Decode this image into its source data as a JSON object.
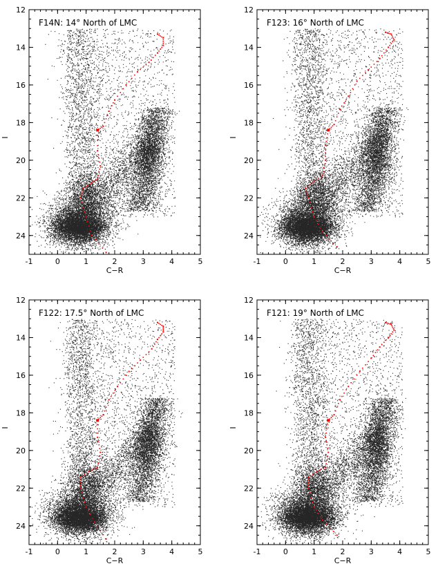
{
  "chart_data": [
    {
      "type": "scatter",
      "title": "F14N: 14° North of LMC",
      "xlabel": "C−R",
      "ylabel": "I",
      "xlim": [
        -1,
        5
      ],
      "ylim": [
        25,
        12
      ],
      "xticks": [
        "-1",
        "0",
        "1",
        "2",
        "3",
        "4",
        "5"
      ],
      "yticks": [
        "12",
        "14",
        "16",
        "18",
        "20",
        "22",
        "24"
      ],
      "y_inverted": true,
      "grid": false,
      "series": [
        {
          "values": "dense black stellar points",
          "color": "#000000"
        },
        {
          "values": [
            [
              1.7,
              24.9
            ],
            [
              1.2,
              24.0
            ],
            [
              1.0,
              23.0
            ],
            [
              0.8,
              22.0
            ],
            [
              0.9,
              21.5
            ],
            [
              1.2,
              21.2
            ],
            [
              1.4,
              21.0
            ],
            [
              1.5,
              20.3
            ],
            [
              1.4,
              19.5
            ],
            [
              1.4,
              18.4
            ],
            [
              1.6,
              18.2
            ],
            [
              1.8,
              17.4
            ],
            [
              2.0,
              16.8
            ],
            [
              2.4,
              16.0
            ],
            [
              2.8,
              15.3
            ],
            [
              3.2,
              14.8
            ],
            [
              3.5,
              14.3
            ],
            [
              3.7,
              13.9
            ],
            [
              3.7,
              13.5
            ],
            [
              3.5,
              13.3
            ]
          ],
          "color": "#ff0000"
        }
      ]
    },
    {
      "type": "scatter",
      "title": "F123: 16° North of LMC",
      "xlabel": "C−R",
      "ylabel": "I",
      "xlim": [
        -1,
        5
      ],
      "ylim": [
        25,
        12
      ],
      "xticks": [
        "-1",
        "0",
        "1",
        "2",
        "3",
        "4",
        "5"
      ],
      "yticks": [
        "12",
        "14",
        "16",
        "18",
        "20",
        "22",
        "24"
      ],
      "y_inverted": true,
      "grid": false,
      "series": [
        {
          "values": "dense black stellar points",
          "color": "#000000"
        },
        {
          "values": [
            [
              1.8,
              24.6
            ],
            [
              1.3,
              23.8
            ],
            [
              1.0,
              23.0
            ],
            [
              0.8,
              22.0
            ],
            [
              0.7,
              21.5
            ],
            [
              1.0,
              21.1
            ],
            [
              1.3,
              20.8
            ],
            [
              1.4,
              20.0
            ],
            [
              1.4,
              19.2
            ],
            [
              1.5,
              18.4
            ],
            [
              1.7,
              18.1
            ],
            [
              1.9,
              17.3
            ],
            [
              2.2,
              16.6
            ],
            [
              2.5,
              15.8
            ],
            [
              2.9,
              15.2
            ],
            [
              3.3,
              14.6
            ],
            [
              3.6,
              14.0
            ],
            [
              3.8,
              13.6
            ],
            [
              3.7,
              13.3
            ],
            [
              3.5,
              13.2
            ]
          ],
          "color": "#ff0000"
        }
      ]
    },
    {
      "type": "scatter",
      "title": "F122: 17.5° North of LMC",
      "xlabel": "C−R",
      "ylabel": "I",
      "xlim": [
        -1,
        5
      ],
      "ylim": [
        25,
        12
      ],
      "xticks": [
        "-1",
        "0",
        "1",
        "2",
        "3",
        "4",
        "5"
      ],
      "yticks": [
        "12",
        "14",
        "16",
        "18",
        "20",
        "22",
        "24"
      ],
      "y_inverted": true,
      "grid": false,
      "series": [
        {
          "values": "dense black stellar points",
          "color": "#000000"
        },
        {
          "values": [
            [
              1.7,
              24.7
            ],
            [
              1.3,
              23.8
            ],
            [
              1.0,
              23.0
            ],
            [
              0.8,
              22.0
            ],
            [
              0.8,
              21.4
            ],
            [
              1.1,
              21.1
            ],
            [
              1.4,
              20.9
            ],
            [
              1.5,
              20.1
            ],
            [
              1.4,
              19.3
            ],
            [
              1.4,
              18.4
            ],
            [
              1.6,
              18.1
            ],
            [
              1.8,
              17.3
            ],
            [
              2.1,
              16.6
            ],
            [
              2.5,
              15.8
            ],
            [
              2.9,
              15.2
            ],
            [
              3.3,
              14.6
            ],
            [
              3.5,
              14.1
            ],
            [
              3.7,
              13.7
            ],
            [
              3.7,
              13.4
            ],
            [
              3.5,
              13.2
            ]
          ],
          "color": "#ff0000"
        }
      ]
    },
    {
      "type": "scatter",
      "title": "F121: 19° North of LMC",
      "xlabel": "C−R",
      "ylabel": "I",
      "xlim": [
        -1,
        5
      ],
      "ylim": [
        25,
        12
      ],
      "xticks": [
        "-1",
        "0",
        "1",
        "2",
        "3",
        "4",
        "5"
      ],
      "yticks": [
        "12",
        "14",
        "16",
        "18",
        "20",
        "22",
        "24"
      ],
      "y_inverted": true,
      "grid": false,
      "series": [
        {
          "values": "dense black stellar points",
          "color": "#000000"
        },
        {
          "values": [
            [
              1.8,
              24.5
            ],
            [
              1.3,
              23.7
            ],
            [
              1.0,
              23.0
            ],
            [
              0.8,
              22.0
            ],
            [
              0.8,
              21.4
            ],
            [
              1.1,
              21.1
            ],
            [
              1.4,
              20.9
            ],
            [
              1.5,
              20.1
            ],
            [
              1.4,
              19.3
            ],
            [
              1.5,
              18.4
            ],
            [
              1.7,
              18.1
            ],
            [
              1.9,
              17.3
            ],
            [
              2.2,
              16.6
            ],
            [
              2.6,
              15.8
            ],
            [
              3.0,
              15.1
            ],
            [
              3.3,
              14.5
            ],
            [
              3.6,
              14.0
            ],
            [
              3.8,
              13.6
            ],
            [
              3.7,
              13.3
            ],
            [
              3.5,
              13.2
            ]
          ],
          "color": "#ff0000"
        }
      ]
    }
  ]
}
